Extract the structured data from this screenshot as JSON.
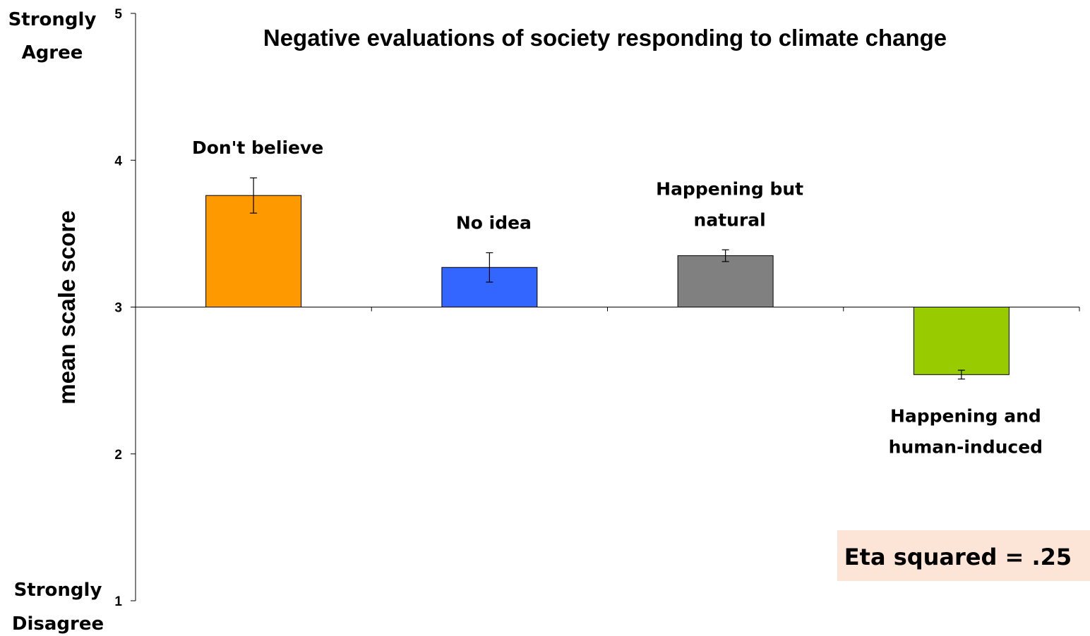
{
  "chart_data": {
    "type": "bar",
    "title": "Negative evaluations of society responding to climate change",
    "ylabel": "mean scale score",
    "ylim": [
      1,
      5
    ],
    "baseline": 3,
    "yticks": [
      1,
      2,
      3,
      4,
      5
    ],
    "y_anchor_labels": {
      "top": [
        "Strongly",
        "Agree"
      ],
      "bottom": [
        "Strongly",
        "Disagree"
      ]
    },
    "categories": [
      [
        "Don't believe"
      ],
      [
        "No idea"
      ],
      [
        "Happening but",
        "natural"
      ],
      [
        "Happening and",
        "human-induced"
      ]
    ],
    "values": [
      3.76,
      3.27,
      3.35,
      2.54
    ],
    "errors": [
      0.12,
      0.1,
      0.04,
      0.03
    ],
    "colors": [
      "#FF9900",
      "#3366FF",
      "#808080",
      "#99CC00"
    ],
    "annotation": "Eta squared = .25",
    "annotation_bg": "#FCE4D6",
    "grid": false,
    "legend": "none"
  }
}
